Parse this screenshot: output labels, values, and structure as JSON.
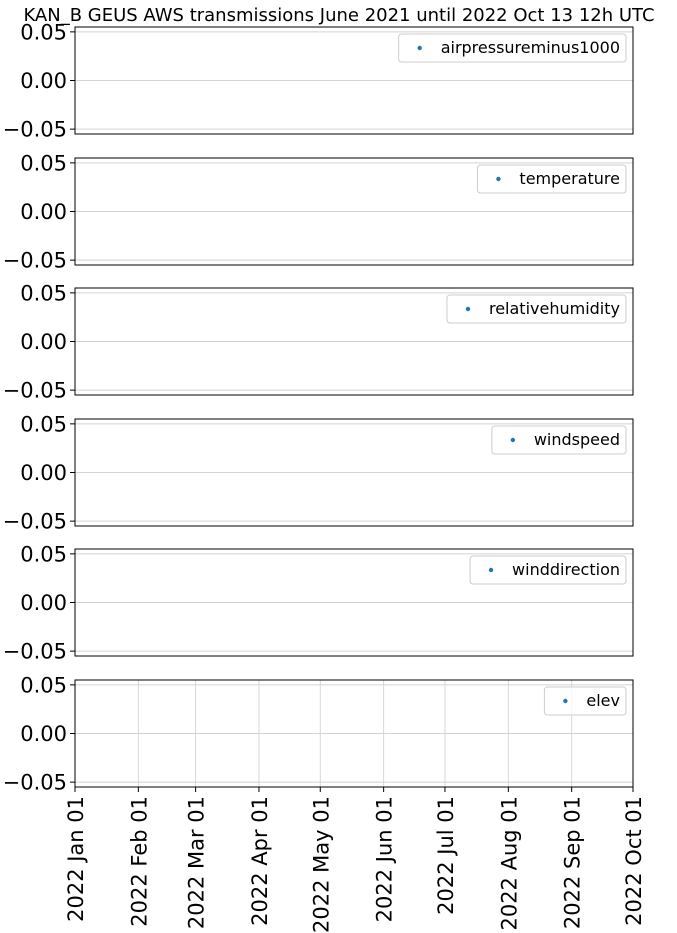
{
  "chart_data": {
    "type": "scatter",
    "title": "KAN_B GEUS AWS transmissions June 2021 until 2022 Oct 13 12h UTC",
    "shared_x_axis": true,
    "x_tick_labels": [
      "2022 Jan 01",
      "2022 Feb 01",
      "2022 Mar 01",
      "2022 Apr 01",
      "2022 May 01",
      "2022 Jun 01",
      "2022 Jul 01",
      "2022 Aug 01",
      "2022 Sep 01",
      "2022 Oct 01"
    ],
    "xlim": [
      "2022-01-01",
      "2022-10-01"
    ],
    "grid": true,
    "legend_position": "top-right",
    "series_color": "#1f77b4",
    "panels": [
      {
        "series": "airpressureminus1000",
        "ylim": [
          -0.055,
          0.055
        ],
        "y_tick_labels": [
          "0.05",
          "0.00",
          "−0.05"
        ],
        "points": []
      },
      {
        "series": "temperature",
        "ylim": [
          -0.055,
          0.055
        ],
        "y_tick_labels": [
          "0.05",
          "0.00",
          "−0.05"
        ],
        "points": []
      },
      {
        "series": "relativehumidity",
        "ylim": [
          -0.055,
          0.055
        ],
        "y_tick_labels": [
          "0.05",
          "0.00",
          "−0.05"
        ],
        "points": []
      },
      {
        "series": "windspeed",
        "ylim": [
          -0.055,
          0.055
        ],
        "y_tick_labels": [
          "0.05",
          "0.00",
          "−0.05"
        ],
        "points": []
      },
      {
        "series": "winddirection",
        "ylim": [
          -0.055,
          0.055
        ],
        "y_tick_labels": [
          "0.05",
          "0.00",
          "−0.05"
        ],
        "points": []
      },
      {
        "series": "elev",
        "ylim": [
          -0.055,
          0.055
        ],
        "y_tick_labels": [
          "0.05",
          "0.00",
          "−0.05"
        ],
        "points": []
      }
    ]
  }
}
